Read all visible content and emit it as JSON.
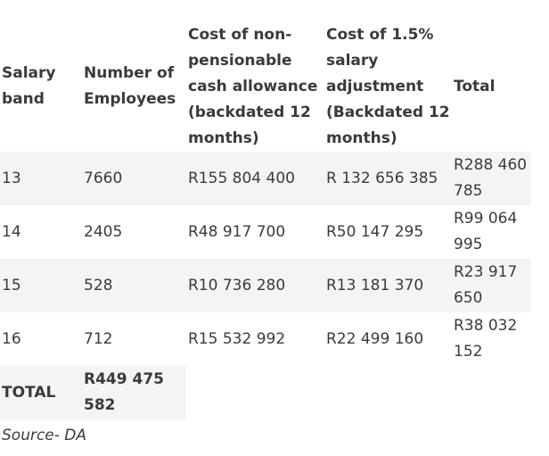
{
  "table": {
    "headers": [
      "Salary band",
      "Number of Employees",
      "Cost of non-pensionable cash allowance (backdated 12 months)",
      "Cost of 1.5% salary adjustment (Backdated 12 months)",
      "Total"
    ],
    "rows": [
      [
        "13",
        "7660",
        "R155 804 400",
        "R 132 656 385",
        "R288 460 785"
      ],
      [
        "14",
        "2405",
        "R48 917 700",
        "R50 147 295",
        "R99 064 995"
      ],
      [
        "15",
        "528",
        "R10 736 280",
        "R13 181 370",
        "R23 917 650"
      ],
      [
        "16",
        "712",
        "R15 532 992",
        "R22 499 160",
        "R38 032 152"
      ]
    ],
    "total": {
      "label": "TOTAL",
      "value": "R449 475 582"
    }
  },
  "source": "Source- DA"
}
